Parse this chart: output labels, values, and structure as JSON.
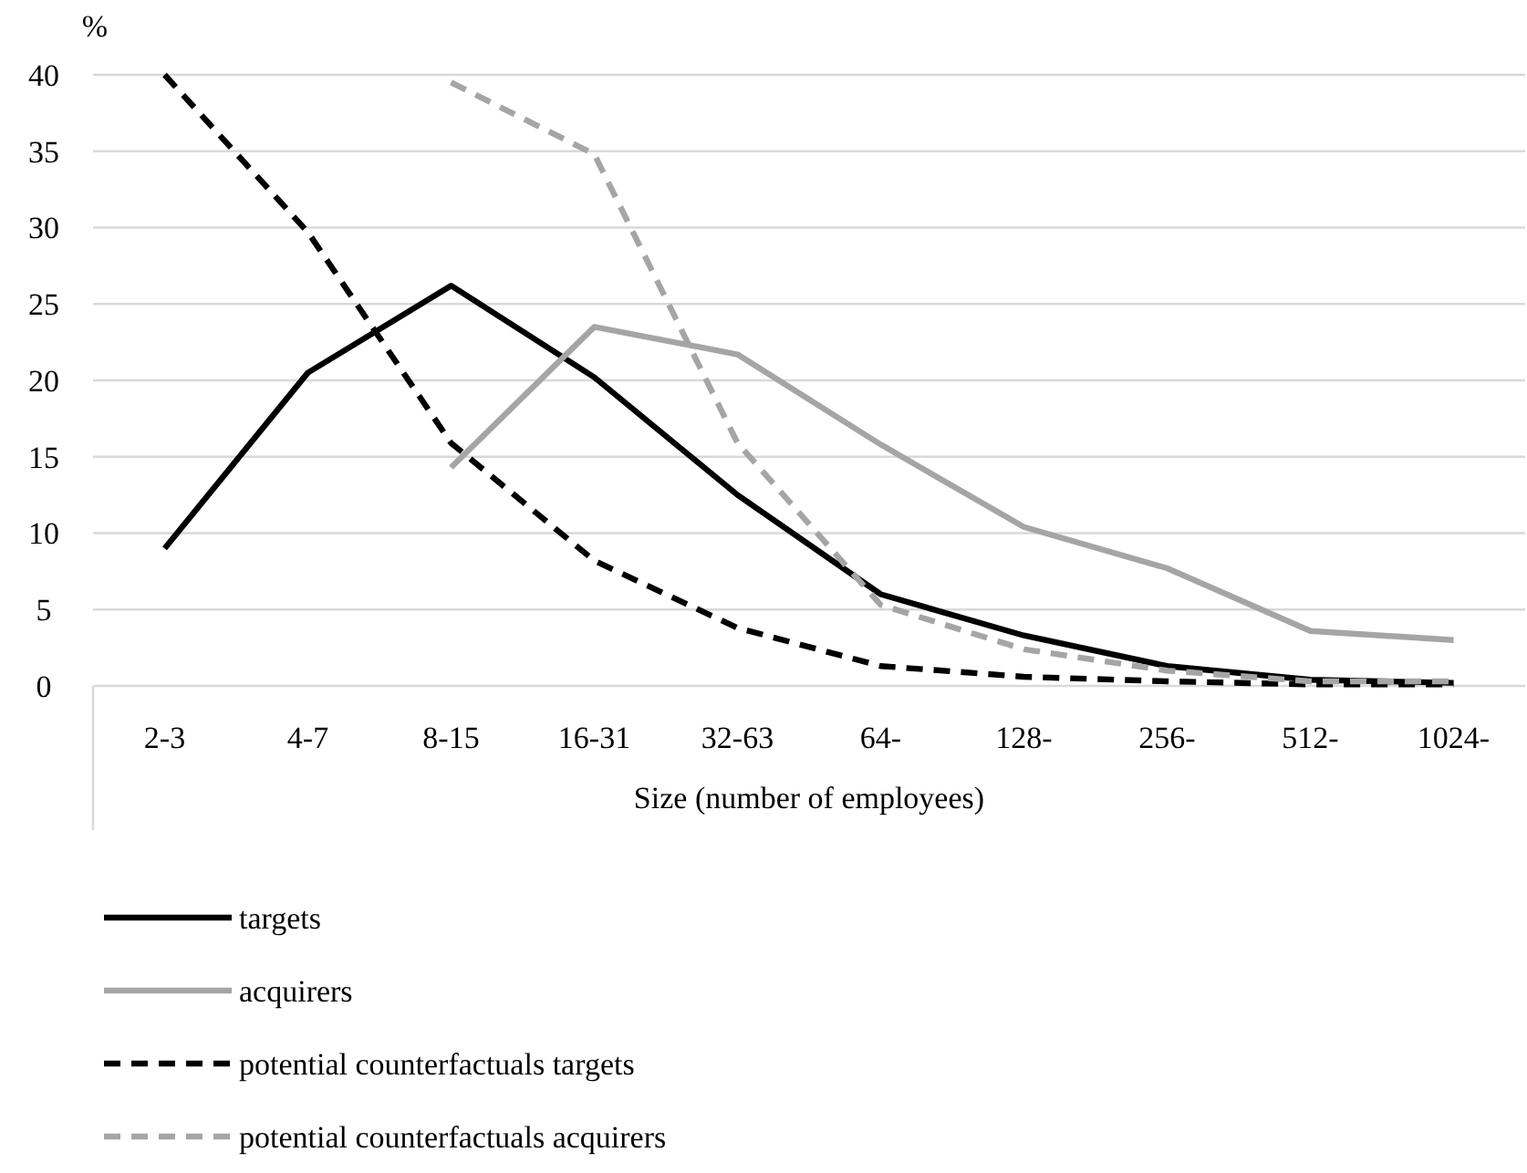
{
  "chart_data": {
    "type": "line",
    "ylabel": "%",
    "xlabel": "Size (number of employees)",
    "categories": [
      "2-3",
      "4-7",
      "8-15",
      "16-31",
      "32-63",
      "64-",
      "128-",
      "256-",
      "512-",
      "1024-"
    ],
    "ylim": [
      0,
      40
    ],
    "yticks": [
      0,
      5,
      10,
      15,
      20,
      25,
      30,
      35,
      40
    ],
    "grid": "y",
    "legend": "bottom left",
    "marker": "none",
    "series": [
      {
        "name": "targets",
        "color": "#000000",
        "line_style": "solid",
        "values": [
          9,
          20.5,
          26.2,
          20.2,
          12.5,
          6,
          3.3,
          1.3,
          0.4,
          0.2
        ]
      },
      {
        "name": "acquirers",
        "color": "#a5a5a5",
        "line_style": "solid",
        "values": [
          null,
          null,
          14.3,
          23.5,
          21.7,
          15.8,
          10.4,
          7.7,
          3.6,
          3.0
        ]
      },
      {
        "name": "potential counterfactuals targets",
        "color": "#000000",
        "line_style": "dashed",
        "values": [
          40,
          29.7,
          15.9,
          8.2,
          3.8,
          1.3,
          0.6,
          0.3,
          0.1,
          0.1
        ]
      },
      {
        "name": "potential counterfactuals acquirers",
        "color": "#a5a5a5",
        "line_style": "dashed",
        "values": [
          null,
          null,
          39.5,
          34.8,
          15.9,
          5.3,
          2.4,
          1.0,
          0.3,
          0.3
        ]
      }
    ]
  }
}
